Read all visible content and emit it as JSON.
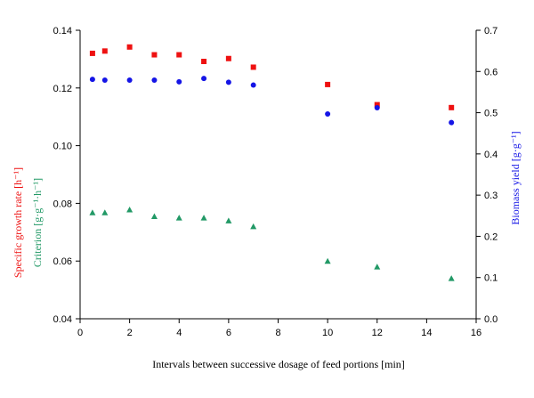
{
  "chart_data": {
    "type": "scatter",
    "title": "",
    "xlabel": "Intervals between successive dosage of feed portions [min]",
    "xlim": [
      0,
      16
    ],
    "xticks": [
      0,
      2,
      4,
      6,
      8,
      10,
      12,
      14,
      16
    ],
    "ylim_left": [
      0.04,
      0.14
    ],
    "yticks_left": [
      "0.04",
      "0.06",
      "0.08",
      "0.10",
      "0.12",
      "0.14"
    ],
    "ylim_right": [
      0.0,
      0.7
    ],
    "yticks_right": [
      "0.0",
      "0.1",
      "0.2",
      "0.3",
      "0.4",
      "0.5",
      "0.6",
      "0.7"
    ],
    "ylabel_left_red": "Specific growth rate [h⁻¹]",
    "ylabel_left_green": "Criterion [g·g⁻¹·h⁻¹]",
    "ylabel_right": "Biomass yield [g·g⁻¹]",
    "grid": false,
    "legend": "none",
    "series": [
      {
        "axis": "left",
        "marker": "square",
        "color": "#ee1111",
        "x": [
          0.5,
          1,
          2,
          3,
          4,
          5,
          6,
          7,
          10,
          12,
          15
        ],
        "y": [
          0.132,
          0.1328,
          0.1342,
          0.1315,
          0.1315,
          0.1292,
          0.1302,
          0.1272,
          0.1212,
          0.1142,
          0.1132
        ]
      },
      {
        "axis": "right",
        "marker": "circle",
        "color": "#1515e6",
        "x": [
          0.5,
          1,
          2,
          3,
          4,
          5,
          6,
          7,
          10,
          12,
          15
        ],
        "y": [
          0.581,
          0.579,
          0.579,
          0.579,
          0.575,
          0.583,
          0.574,
          0.567,
          0.497,
          0.512,
          0.476
        ]
      },
      {
        "axis": "left",
        "marker": "triangle",
        "color": "#229966",
        "x": [
          0.5,
          1,
          2,
          3,
          4,
          5,
          6,
          7,
          10,
          12,
          15
        ],
        "y": [
          0.0768,
          0.0768,
          0.0778,
          0.0755,
          0.075,
          0.075,
          0.074,
          0.072,
          0.06,
          0.058,
          0.054
        ]
      }
    ]
  }
}
